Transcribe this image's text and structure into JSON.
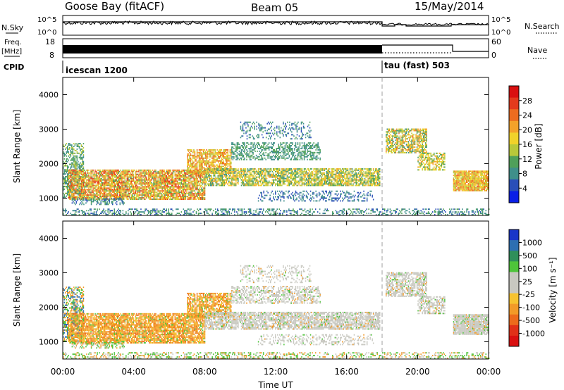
{
  "header": {
    "station": "Goose Bay (fitACF)",
    "beam": "Beam 05",
    "date": "15/May/2014"
  },
  "status_panels": {
    "nsky_label": "N.Sky",
    "nsky_ticks": [
      "10^5",
      "10^0"
    ],
    "nsearch_label": "N.Search",
    "nsearch_ticks": [
      "10^5",
      "10^0"
    ],
    "freq_label": "Freq.",
    "freq_unit": "[MHz]",
    "freq_ticks": [
      "18",
      "8"
    ],
    "nave_label": "Nave",
    "nave_ticks": [
      "60",
      "0"
    ],
    "cpid_label": "CPID",
    "cpid_modes": [
      {
        "name": "icescan 1200",
        "start": "00:00"
      },
      {
        "name": "tau (fast) 503",
        "start": "18:00"
      }
    ]
  },
  "colors": {
    "power": [
      "#0a1ee6",
      "#2a4fb8",
      "#3f8f8a",
      "#4fa05a",
      "#b8c83a",
      "#f0d22a",
      "#f3a22a",
      "#ec6c1f",
      "#e33a1c",
      "#d91010"
    ],
    "velocity": [
      "#1a36c8",
      "#2d6fb2",
      "#2f8f5a",
      "#4ec43a",
      "#c8c8c0",
      "#c8c8c0",
      "#f6c330",
      "#f29a28",
      "#ec6a1c",
      "#e03018",
      "#d91010"
    ]
  },
  "chart_data": [
    {
      "type": "heatmap",
      "name": "Power",
      "xlabel": "Time UT",
      "ylabel": "Slant Range [km]",
      "x_ticks": [
        "00:00",
        "04:00",
        "08:00",
        "12:00",
        "16:00",
        "20:00",
        "00:00"
      ],
      "xlim": [
        0,
        24
      ],
      "ylim": [
        500,
        4500
      ],
      "y_ticks": [
        "1000",
        "2000",
        "3000",
        "4000"
      ],
      "colorbar_label": "Power [dB]",
      "colorbar_ticks": [
        "28",
        "24",
        "20",
        "16",
        "12",
        "8",
        "4"
      ],
      "colorbar_range": [
        0,
        30
      ],
      "grid": false
    },
    {
      "type": "heatmap",
      "name": "Velocity",
      "xlabel": "Time UT",
      "ylabel": "Slant Range [km]",
      "x_ticks": [
        "00:00",
        "04:00",
        "08:00",
        "12:00",
        "16:00",
        "20:00",
        "00:00"
      ],
      "xlim": [
        0,
        24
      ],
      "ylim": [
        500,
        4500
      ],
      "y_ticks": [
        "1000",
        "2000",
        "3000",
        "4000"
      ],
      "colorbar_label": "Velocity [m s⁻¹]",
      "colorbar_ticks": [
        "1000",
        "500",
        "100",
        "25",
        "-25",
        "-100",
        "-500",
        "-1000"
      ],
      "grid": false
    }
  ]
}
